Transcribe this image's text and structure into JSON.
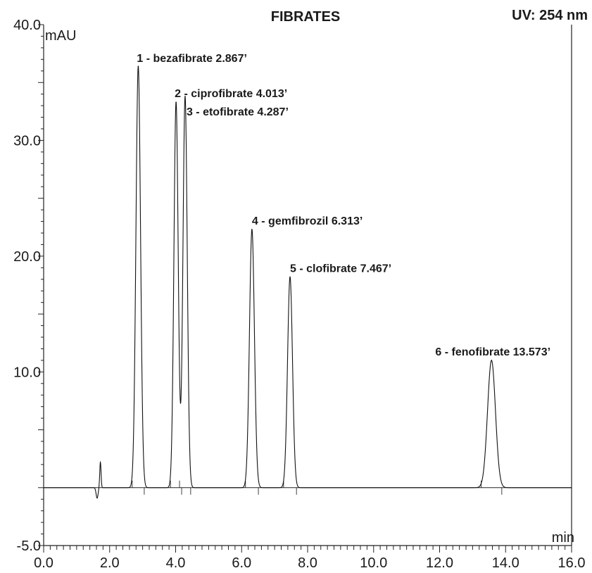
{
  "chart_data": {
    "type": "line",
    "title": "FIBRATES",
    "detector": "UV: 254 nm",
    "xlabel": "min",
    "ylabel": "mAU",
    "xlim": [
      0.0,
      16.0
    ],
    "ylim": [
      -5.0,
      40.0
    ],
    "x_ticks": [
      "0.0",
      "2.0",
      "4.0",
      "6.0",
      "8.0",
      "10.0",
      "12.0",
      "14.0",
      "16.0"
    ],
    "y_ticks": [
      {
        "value": 40.0,
        "label": "40.0"
      },
      {
        "value": 30.0,
        "label": "30.0"
      },
      {
        "value": 20.0,
        "label": "20.0"
      },
      {
        "value": 10.0,
        "label": "10.0"
      },
      {
        "value": -5.0,
        "label": "-5.0"
      }
    ],
    "baseline": 0,
    "grid": false,
    "peaks": [
      {
        "id": 1,
        "name": "bezafibrate",
        "rt": 2.867,
        "height": 36.4,
        "width": 0.07,
        "label": "1 - bezafibrate 2.867’"
      },
      {
        "id": 2,
        "name": "ciprofibrate",
        "rt": 4.013,
        "height": 33.3,
        "width": 0.065,
        "label": "2 - ciprofibrate 4.013’"
      },
      {
        "id": 3,
        "name": "etofibrate",
        "rt": 4.287,
        "height": 33.8,
        "width": 0.065,
        "label": "3 - etofibrate 4.287’"
      },
      {
        "id": 4,
        "name": "gemfibrozil",
        "rt": 6.313,
        "height": 22.3,
        "width": 0.075,
        "label": "4 - gemfibrozil 6.313’"
      },
      {
        "id": 5,
        "name": "clofibrate",
        "rt": 7.467,
        "height": 18.2,
        "width": 0.075,
        "label": "5 - clofibrate 7.467’"
      },
      {
        "id": 6,
        "name": "fenofibrate",
        "rt": 13.573,
        "height": 11.0,
        "width": 0.12,
        "label": "6 - fenofibrate 13.573’"
      }
    ]
  }
}
